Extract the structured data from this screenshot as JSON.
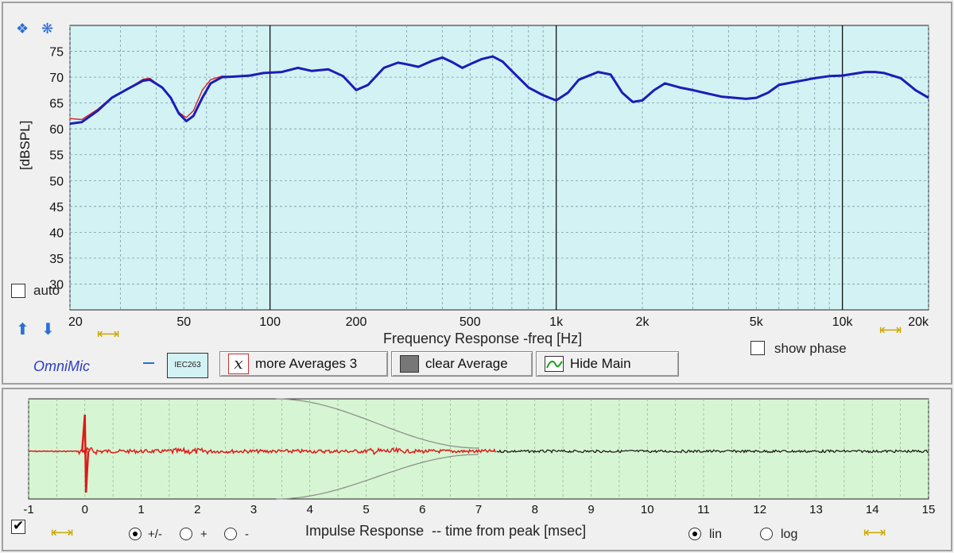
{
  "top": {
    "ylabel": "[dBSPL]",
    "xlabel": "Frequency Response -freq [Hz]",
    "auto_label": "auto",
    "show_phase_label": "show phase",
    "brand": "OmniMic",
    "mic_badge": "IEC263",
    "more_averages_label": "more Averages 3",
    "clear_average_label": "clear Average",
    "hide_main_label": "Hide Main",
    "auto_checked": false,
    "show_phase_checked": false
  },
  "bottom": {
    "xlabel": "Impulse Response  -- time from peak [msec]",
    "radio_pm": "+/-",
    "radio_plus": "+",
    "radio_minus": "-",
    "radio_lin": "lin",
    "radio_log": "log",
    "enabled_checked": true
  },
  "colors": {
    "fr_bg": "#d3f2f4",
    "ir_bg": "#d6f5d2",
    "main_curve": "#1c1cb8",
    "avg_curve": "#dd2020",
    "ir_red": "#dd1a1a",
    "ir_black": "#111111"
  },
  "chart_data": [
    {
      "type": "line",
      "xscale": "log",
      "xlim": [
        20,
        20000
      ],
      "ylim": [
        25,
        80
      ],
      "yticks": [
        30,
        35,
        40,
        45,
        50,
        55,
        60,
        65,
        70,
        75
      ],
      "xtick_labels": [
        {
          "v": 20,
          "t": "20"
        },
        {
          "v": 50,
          "t": "50"
        },
        {
          "v": 100,
          "t": "100"
        },
        {
          "v": 200,
          "t": "200"
        },
        {
          "v": 500,
          "t": "500"
        },
        {
          "v": 1000,
          "t": "1k"
        },
        {
          "v": 2000,
          "t": "2k"
        },
        {
          "v": 5000,
          "t": "5k"
        },
        {
          "v": 10000,
          "t": "10k"
        },
        {
          "v": 20000,
          "t": "20k"
        }
      ],
      "series": [
        {
          "values": [
            [
              20,
              61
            ],
            [
              22,
              61.3
            ],
            [
              25,
              63.5
            ],
            [
              28,
              66
            ],
            [
              32,
              67.8
            ],
            [
              36,
              69.3
            ],
            [
              38,
              69.5
            ],
            [
              42,
              68
            ],
            [
              45,
              66
            ],
            [
              48,
              63
            ],
            [
              51,
              61.5
            ],
            [
              54,
              62.5
            ],
            [
              58,
              66
            ],
            [
              62,
              68.8
            ],
            [
              68,
              70
            ],
            [
              75,
              70.1
            ],
            [
              85,
              70.3
            ],
            [
              95,
              70.8
            ],
            [
              110,
              71
            ],
            [
              125,
              71.8
            ],
            [
              140,
              71.2
            ],
            [
              160,
              71.5
            ],
            [
              180,
              70.2
            ],
            [
              200,
              67.5
            ],
            [
              220,
              68.5
            ],
            [
              250,
              71.8
            ],
            [
              280,
              72.8
            ],
            [
              300,
              72.5
            ],
            [
              330,
              72
            ],
            [
              370,
              73.2
            ],
            [
              400,
              73.8
            ],
            [
              430,
              73
            ],
            [
              470,
              71.8
            ],
            [
              500,
              72.5
            ],
            [
              550,
              73.5
            ],
            [
              600,
              74
            ],
            [
              650,
              73
            ],
            [
              720,
              70.5
            ],
            [
              800,
              68
            ],
            [
              900,
              66.5
            ],
            [
              1000,
              65.5
            ],
            [
              1100,
              67
            ],
            [
              1200,
              69.5
            ],
            [
              1400,
              71
            ],
            [
              1550,
              70.5
            ],
            [
              1700,
              67
            ],
            [
              1850,
              65.2
            ],
            [
              2000,
              65.5
            ],
            [
              2200,
              67.5
            ],
            [
              2400,
              68.8
            ],
            [
              2700,
              68
            ],
            [
              3000,
              67.5
            ],
            [
              3400,
              66.8
            ],
            [
              3800,
              66.2
            ],
            [
              4200,
              66
            ],
            [
              4600,
              65.8
            ],
            [
              5000,
              66
            ],
            [
              5500,
              67
            ],
            [
              6000,
              68.5
            ],
            [
              7000,
              69.2
            ],
            [
              8000,
              69.8
            ],
            [
              9000,
              70.2
            ],
            [
              10000,
              70.3
            ],
            [
              12000,
              71
            ],
            [
              13000,
              71
            ],
            [
              14000,
              70.8
            ],
            [
              16000,
              69.8
            ],
            [
              18000,
              67.5
            ],
            [
              20000,
              66
            ]
          ],
          "color": "#1c1cb8"
        },
        {
          "values": [
            [
              20,
              62
            ],
            [
              22,
              61.8
            ],
            [
              25,
              63.8
            ],
            [
              28,
              66.1
            ],
            [
              32,
              67.8
            ],
            [
              36,
              69.6
            ],
            [
              38,
              69.8
            ],
            [
              42,
              68
            ],
            [
              45,
              66
            ],
            [
              48,
              63.2
            ],
            [
              51,
              62.2
            ],
            [
              54,
              63.5
            ],
            [
              58,
              67.5
            ],
            [
              62,
              69.5
            ],
            [
              68,
              70.2
            ],
            [
              75,
              70.1
            ]
          ],
          "color": "#dd2020"
        }
      ]
    },
    {
      "type": "line",
      "xlim": [
        -1,
        15
      ],
      "xticks": [
        -1,
        0,
        1,
        2,
        3,
        4,
        5,
        6,
        7,
        8,
        9,
        10,
        11,
        12,
        13,
        14,
        15
      ],
      "description": "impulse response with spike at 0 ms, red gated section to ~7.3 ms, black remainder, grey window envelope from 3.5 to 7 ms"
    }
  ]
}
